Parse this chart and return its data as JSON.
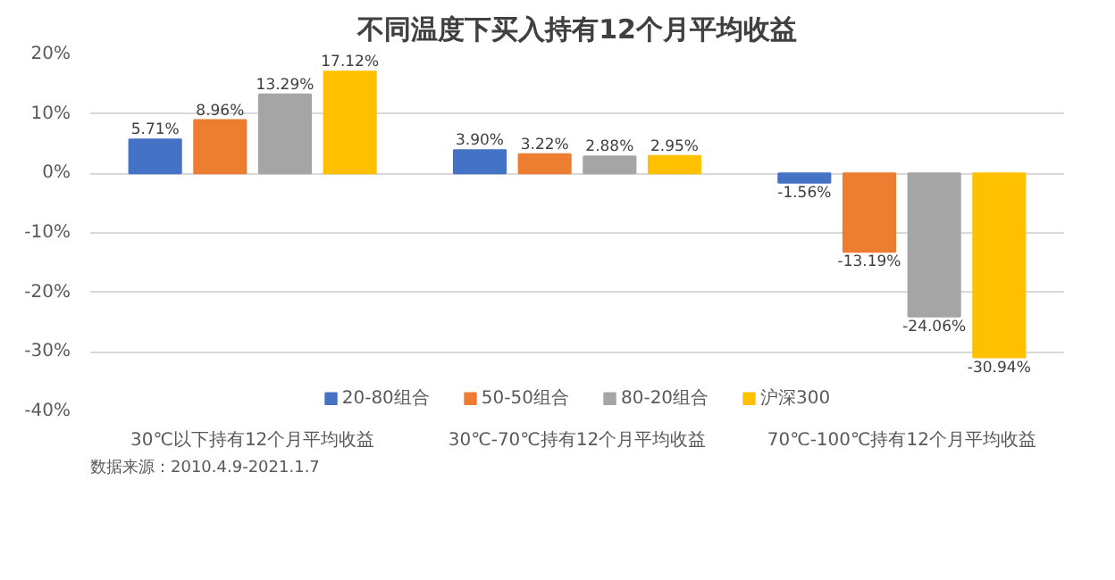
{
  "chart_data": {
    "type": "bar",
    "title": "不同温度下买入持有12个月平均收益",
    "categories": [
      "30℃以下持有12个月平均收益",
      "30℃-70℃持有12个月平均收益",
      "70℃-100℃持有12个月平均收益"
    ],
    "series": [
      {
        "name": "20-80组合",
        "color": "#4472c4",
        "values": [
          5.71,
          3.9,
          -1.56
        ],
        "value_labels": [
          "5.71%",
          "3.90%",
          "-1.56%"
        ]
      },
      {
        "name": "50-50组合",
        "color": "#ed7d31",
        "values": [
          8.96,
          3.22,
          -13.19
        ],
        "value_labels": [
          "8.96%",
          "3.22%",
          "-13.19%"
        ]
      },
      {
        "name": "80-20组合",
        "color": "#a5a5a5",
        "values": [
          13.29,
          2.88,
          -24.06
        ],
        "value_labels": [
          "13.29%",
          "2.88%",
          "-24.06%"
        ]
      },
      {
        "name": "沪深300",
        "color": "#ffc000",
        "values": [
          17.12,
          2.95,
          -30.94
        ],
        "value_labels": [
          "17.12%",
          "2.95%",
          "-30.94%"
        ]
      }
    ],
    "ylim": [
      -40,
      20
    ],
    "yticks": [
      {
        "value": -40,
        "label": "-40%"
      },
      {
        "value": -30,
        "label": "-30%"
      },
      {
        "value": -20,
        "label": "-20%"
      },
      {
        "value": -10,
        "label": "-10%"
      },
      {
        "value": 0,
        "label": "0%"
      },
      {
        "value": 10,
        "label": "10%"
      },
      {
        "value": 20,
        "label": "20%"
      }
    ],
    "grid": "y",
    "legend": "bottom",
    "annotations": [
      "数据来源：2010.4.9-2021.1.7"
    ]
  }
}
